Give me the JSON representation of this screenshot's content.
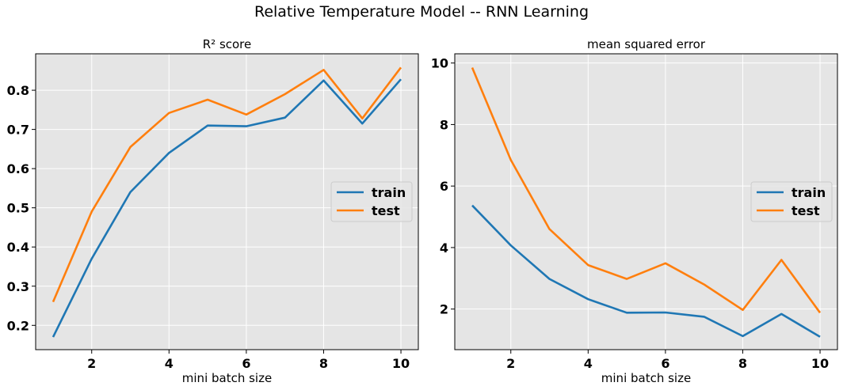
{
  "figure": {
    "title": "Relative Temperature Model -- RNN Learning"
  },
  "colors": {
    "train": "#1f77b4",
    "test": "#ff7f0e",
    "plot_bg": "#e5e5e5",
    "grid": "#ffffff"
  },
  "chart_data": [
    {
      "type": "line",
      "title": "R² score",
      "xlabel": "mini batch size",
      "ylabel": "",
      "x": [
        1,
        2,
        3,
        4,
        5,
        6,
        7,
        8,
        9,
        10
      ],
      "xlim": [
        0.55,
        10.45
      ],
      "ylim": [
        0.138,
        0.893
      ],
      "xticks": [
        2,
        4,
        6,
        8,
        10
      ],
      "xtick_labels": [
        "2",
        "4",
        "6",
        "8",
        "10"
      ],
      "yticks": [
        0.2,
        0.3,
        0.4,
        0.5,
        0.6,
        0.7,
        0.8
      ],
      "ytick_labels": [
        "0.2",
        "0.3",
        "0.4",
        "0.5",
        "0.6",
        "0.7",
        "0.8"
      ],
      "grid": true,
      "legend": "center right",
      "series": [
        {
          "name": "train",
          "values": [
            0.17,
            0.37,
            0.54,
            0.64,
            0.71,
            0.708,
            0.73,
            0.825,
            0.715,
            0.828
          ]
        },
        {
          "name": "test",
          "values": [
            0.26,
            0.49,
            0.655,
            0.742,
            0.776,
            0.738,
            0.79,
            0.852,
            0.728,
            0.858
          ]
        }
      ]
    },
    {
      "type": "line",
      "title": "mean squared error",
      "xlabel": "mini batch size",
      "ylabel": "",
      "x": [
        1,
        2,
        3,
        4,
        5,
        6,
        7,
        8,
        9,
        10
      ],
      "xlim": [
        0.55,
        10.45
      ],
      "ylim": [
        0.68,
        10.3
      ],
      "xticks": [
        2,
        4,
        6,
        8,
        10
      ],
      "xtick_labels": [
        "2",
        "4",
        "6",
        "8",
        "10"
      ],
      "yticks": [
        2,
        4,
        6,
        8,
        10
      ],
      "ytick_labels": [
        "2",
        "4",
        "6",
        "8",
        "10"
      ],
      "grid": true,
      "legend": "center right",
      "series": [
        {
          "name": "train",
          "values": [
            5.37,
            4.07,
            2.98,
            2.32,
            1.88,
            1.89,
            1.75,
            1.12,
            1.84,
            1.1
          ]
        },
        {
          "name": "test",
          "values": [
            9.85,
            6.85,
            4.6,
            3.43,
            2.98,
            3.49,
            2.8,
            1.97,
            3.6,
            1.88
          ]
        }
      ]
    }
  ]
}
